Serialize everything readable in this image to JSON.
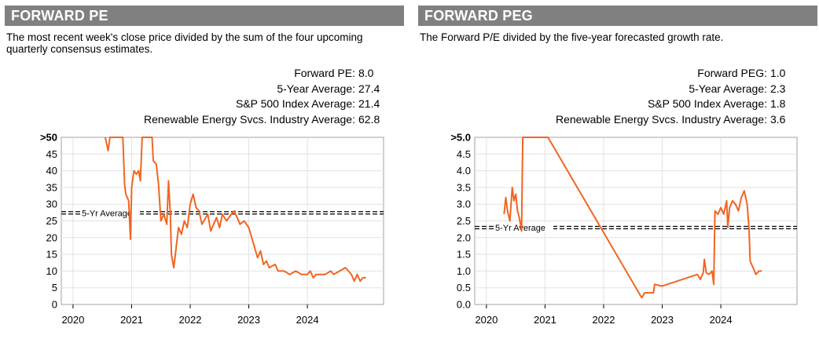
{
  "left": {
    "header": "FORWARD PE",
    "description": "The most recent week's close price divided by the sum of the four upcoming quarterly consensus estimates.",
    "stats": [
      {
        "label": "Forward PE:",
        "value": "8.0"
      },
      {
        "label": "5-Year Average:",
        "value": "27.4"
      },
      {
        "label": "S&P 500 Index Average:",
        "value": "21.4"
      },
      {
        "label": "Renewable Energy Svcs. Industry Average:",
        "value": "62.8"
      }
    ]
  },
  "right": {
    "header": "FORWARD PEG",
    "description": "The Forward P/E divided by the five-year forecasted growth rate.",
    "stats": [
      {
        "label": "Forward PEG:",
        "value": "1.0"
      },
      {
        "label": "5-Year Average:",
        "value": "2.3"
      },
      {
        "label": "S&P 500 Index Average:",
        "value": "1.8"
      },
      {
        "label": "Renewable Energy Svcs. Industry Average:",
        "value": "3.6"
      }
    ]
  },
  "chart_data": [
    {
      "type": "line",
      "line_color": "#F26522",
      "ylim": [
        0,
        50
      ],
      "xlim": [
        2019.8,
        2025.3
      ],
      "y_ticks": [
        ">50",
        "45",
        "40",
        "35",
        "30",
        "25",
        "20",
        "15",
        "10",
        "5",
        "0"
      ],
      "y_tick_values": [
        50,
        45,
        40,
        35,
        30,
        25,
        20,
        15,
        10,
        5,
        0
      ],
      "x_ticks": [
        "2020",
        "2021",
        "2022",
        "2023",
        "2024"
      ],
      "x_tick_values": [
        2020.0,
        2021.0,
        2022.0,
        2023.0,
        2024.0
      ],
      "reference_lines": [
        {
          "label": "5-Yr Average",
          "value": 27.4
        }
      ],
      "series": [
        {
          "points": [
            [
              2020.55,
              50
            ],
            [
              2020.6,
              46
            ],
            [
              2020.63,
              50
            ],
            [
              2020.85,
              50
            ],
            [
              2020.88,
              36
            ],
            [
              2020.9,
              33
            ],
            [
              2020.95,
              31
            ],
            [
              2020.98,
              19.5
            ],
            [
              2021.0,
              35
            ],
            [
              2021.04,
              40
            ],
            [
              2021.08,
              39
            ],
            [
              2021.12,
              40
            ],
            [
              2021.15,
              37
            ],
            [
              2021.18,
              50
            ],
            [
              2021.35,
              50
            ],
            [
              2021.37,
              43
            ],
            [
              2021.42,
              42
            ],
            [
              2021.46,
              36
            ],
            [
              2021.5,
              25
            ],
            [
              2021.55,
              27
            ],
            [
              2021.6,
              24
            ],
            [
              2021.63,
              37
            ],
            [
              2021.66,
              27
            ],
            [
              2021.68,
              15
            ],
            [
              2021.72,
              11
            ],
            [
              2021.76,
              17
            ],
            [
              2021.8,
              23
            ],
            [
              2021.85,
              21
            ],
            [
              2021.9,
              25
            ],
            [
              2021.95,
              23
            ],
            [
              2022.0,
              30
            ],
            [
              2022.05,
              33
            ],
            [
              2022.1,
              29
            ],
            [
              2022.15,
              28
            ],
            [
              2022.2,
              24
            ],
            [
              2022.3,
              27
            ],
            [
              2022.35,
              22
            ],
            [
              2022.45,
              26
            ],
            [
              2022.5,
              23
            ],
            [
              2022.55,
              27
            ],
            [
              2022.62,
              25
            ],
            [
              2022.7,
              27
            ],
            [
              2022.75,
              28
            ],
            [
              2022.8,
              26
            ],
            [
              2022.85,
              24
            ],
            [
              2022.92,
              25
            ],
            [
              2023.0,
              23
            ],
            [
              2023.05,
              20
            ],
            [
              2023.1,
              17
            ],
            [
              2023.15,
              14
            ],
            [
              2023.2,
              16
            ],
            [
              2023.25,
              12
            ],
            [
              2023.3,
              13
            ],
            [
              2023.35,
              11
            ],
            [
              2023.45,
              12
            ],
            [
              2023.5,
              10
            ],
            [
              2023.6,
              10
            ],
            [
              2023.7,
              9
            ],
            [
              2023.8,
              10
            ],
            [
              2023.9,
              9
            ],
            [
              2024.0,
              9
            ],
            [
              2024.05,
              10
            ],
            [
              2024.1,
              8
            ],
            [
              2024.15,
              9
            ],
            [
              2024.2,
              9
            ],
            [
              2024.3,
              9
            ],
            [
              2024.4,
              10
            ],
            [
              2024.45,
              9
            ],
            [
              2024.55,
              10
            ],
            [
              2024.65,
              11
            ],
            [
              2024.7,
              10
            ],
            [
              2024.75,
              9
            ],
            [
              2024.8,
              7
            ],
            [
              2024.85,
              9
            ],
            [
              2024.9,
              7
            ],
            [
              2024.95,
              8
            ],
            [
              2025.0,
              8
            ]
          ]
        }
      ]
    },
    {
      "type": "line",
      "line_color": "#F26522",
      "ylim": [
        0,
        5
      ],
      "xlim": [
        2019.8,
        2025.3
      ],
      "y_ticks": [
        ">5.0",
        "4.5",
        "4.0",
        "3.5",
        "3.0",
        "2.5",
        "2.0",
        "1.5",
        "1.0",
        "0.5",
        "0.0"
      ],
      "y_tick_values": [
        5.0,
        4.5,
        4.0,
        3.5,
        3.0,
        2.5,
        2.0,
        1.5,
        1.0,
        0.5,
        0.0
      ],
      "x_ticks": [
        "2020",
        "2021",
        "2022",
        "2023",
        "2024"
      ],
      "x_tick_values": [
        2020.0,
        2021.0,
        2022.0,
        2023.0,
        2024.0
      ],
      "reference_lines": [
        {
          "label": "5-Yr Average",
          "value": 2.3
        }
      ],
      "series": [
        {
          "points": [
            [
              2020.3,
              2.7
            ],
            [
              2020.33,
              3.2
            ],
            [
              2020.36,
              2.8
            ],
            [
              2020.4,
              2.5
            ],
            [
              2020.44,
              3.5
            ],
            [
              2020.47,
              3.1
            ],
            [
              2020.5,
              3.3
            ],
            [
              2020.53,
              2.8
            ],
            [
              2020.56,
              2.6
            ],
            [
              2020.6,
              2.2
            ],
            [
              2020.62,
              5.0
            ],
            [
              2021.05,
              5.0
            ],
            [
              2022.65,
              0.2
            ],
            [
              2022.7,
              0.35
            ],
            [
              2022.85,
              0.35
            ],
            [
              2022.87,
              0.6
            ],
            [
              2023.0,
              0.55
            ],
            [
              2023.6,
              0.9
            ],
            [
              2023.65,
              0.75
            ],
            [
              2023.7,
              0.95
            ],
            [
              2023.72,
              1.35
            ],
            [
              2023.75,
              0.95
            ],
            [
              2023.8,
              0.9
            ],
            [
              2023.85,
              1.0
            ],
            [
              2023.88,
              0.6
            ],
            [
              2023.9,
              2.8
            ],
            [
              2023.95,
              2.7
            ],
            [
              2024.0,
              2.9
            ],
            [
              2024.05,
              2.7
            ],
            [
              2024.1,
              3.1
            ],
            [
              2024.12,
              2.3
            ],
            [
              2024.15,
              2.9
            ],
            [
              2024.2,
              3.1
            ],
            [
              2024.25,
              3.0
            ],
            [
              2024.3,
              2.8
            ],
            [
              2024.35,
              3.2
            ],
            [
              2024.4,
              3.4
            ],
            [
              2024.45,
              3.0
            ],
            [
              2024.48,
              2.3
            ],
            [
              2024.5,
              1.3
            ],
            [
              2024.55,
              1.1
            ],
            [
              2024.6,
              0.9
            ],
            [
              2024.65,
              1.0
            ],
            [
              2024.7,
              1.0
            ]
          ]
        }
      ]
    }
  ]
}
